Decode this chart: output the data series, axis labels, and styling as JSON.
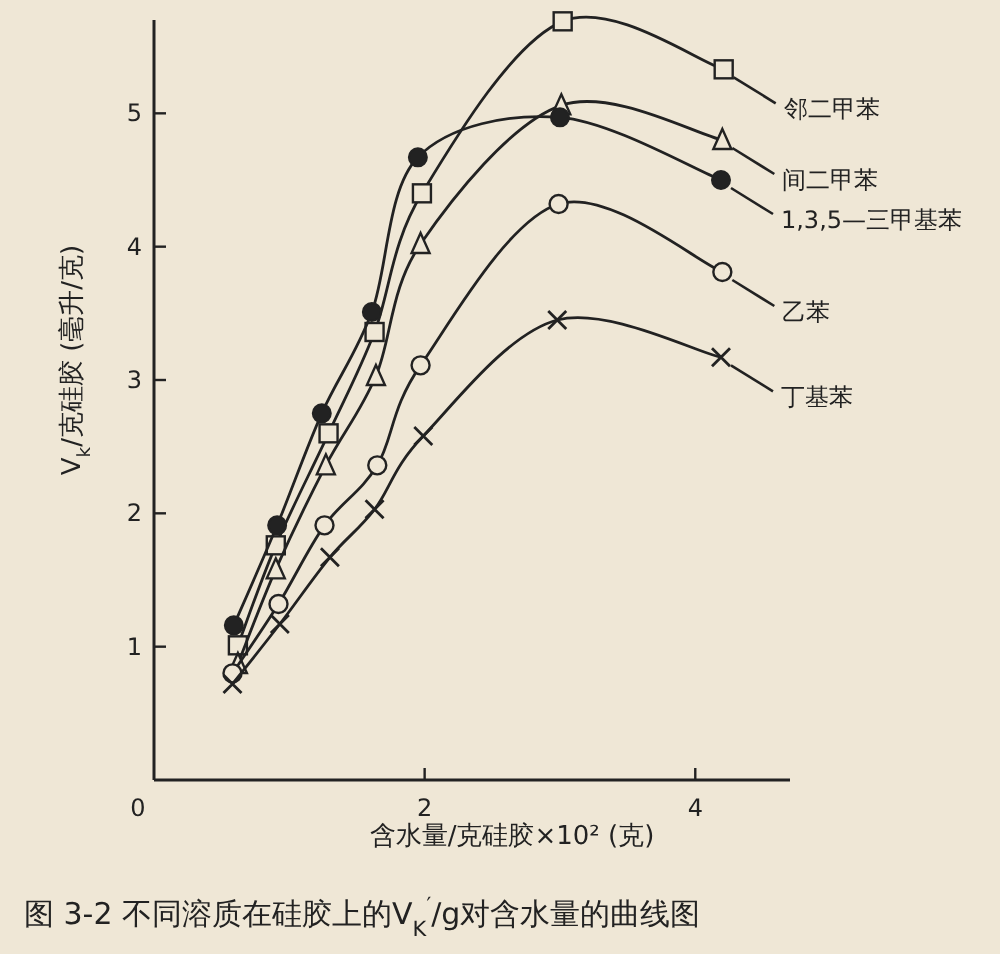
{
  "chart_data": {
    "type": "line",
    "title": "图 3-2  不同溶质在硅胶上的V$_{K}$$^{′}$/g对含水量的曲线图",
    "xlabel": "含水量/克硅胶×10² (克)",
    "ylabel": "V$_{k}$/克硅胶 (毫升/克)",
    "xlim": [
      0,
      4.7
    ],
    "ylim": [
      0,
      5.7
    ],
    "xticks": [
      0,
      2,
      4
    ],
    "yticks": [
      1,
      2,
      3,
      4,
      5
    ],
    "grid": false,
    "line_style": "solid",
    "series": [
      {
        "name": "邻二甲苯",
        "color": "#222222",
        "marker": "square",
        "x": [
          0.62,
          0.9,
          1.29,
          1.63,
          1.98,
          3.02,
          4.21
        ],
        "values": [
          1.01,
          1.76,
          2.6,
          3.36,
          4.4,
          5.69,
          5.33
        ]
      },
      {
        "name": "间二甲苯",
        "color": "#222222",
        "marker": "triangle",
        "x": [
          0.62,
          0.9,
          1.27,
          1.64,
          1.97,
          3.01,
          4.2
        ],
        "values": [
          0.87,
          1.58,
          2.36,
          3.03,
          4.02,
          5.06,
          4.8
        ]
      },
      {
        "name": "1,3,5—三甲基苯",
        "color": "#222222",
        "marker": "filled circle",
        "x": [
          0.59,
          0.91,
          1.24,
          1.61,
          1.95,
          3.0,
          4.19
        ],
        "values": [
          1.16,
          1.91,
          2.75,
          3.51,
          4.67,
          4.97,
          4.5
        ]
      },
      {
        "name": "乙苯",
        "color": "#222222",
        "marker": "circle",
        "x": [
          0.58,
          0.92,
          1.26,
          1.65,
          1.97,
          2.99,
          4.2
        ],
        "values": [
          0.8,
          1.32,
          1.91,
          2.36,
          3.11,
          4.32,
          3.81
        ]
      },
      {
        "name": "丁基苯",
        "color": "#222222",
        "marker": "cross",
        "x": [
          0.58,
          0.93,
          1.3,
          1.63,
          1.99,
          2.98,
          4.19
        ],
        "values": [
          0.72,
          1.17,
          1.67,
          2.03,
          2.58,
          3.45,
          3.17
        ]
      }
    ]
  }
}
